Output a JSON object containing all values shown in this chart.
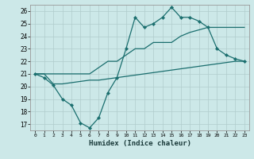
{
  "xlabel": "Humidex (Indice chaleur)",
  "xlim": [
    -0.5,
    23.5
  ],
  "ylim": [
    16.5,
    26.5
  ],
  "xticks": [
    0,
    1,
    2,
    3,
    4,
    5,
    6,
    7,
    8,
    9,
    10,
    11,
    12,
    13,
    14,
    15,
    16,
    17,
    18,
    19,
    20,
    21,
    22,
    23
  ],
  "yticks": [
    17,
    18,
    19,
    20,
    21,
    22,
    23,
    24,
    25,
    26
  ],
  "bg_color": "#cce8e8",
  "grid_color": "#b0cccc",
  "line_color": "#1a6e6e",
  "line1_y": [
    21.0,
    20.7,
    20.1,
    19.0,
    18.5,
    17.1,
    16.7,
    17.5,
    19.5,
    20.7,
    23.0,
    25.5,
    24.7,
    25.0,
    25.5,
    26.3,
    25.5,
    25.5,
    25.2,
    24.7,
    23.0,
    22.5,
    22.2,
    22.0
  ],
  "line2_y": [
    21.0,
    21.0,
    21.0,
    21.0,
    21.0,
    21.0,
    21.0,
    21.5,
    22.0,
    22.0,
    22.5,
    23.0,
    23.0,
    23.5,
    23.5,
    23.5,
    24.0,
    24.3,
    24.5,
    24.7,
    24.7,
    24.7,
    24.7,
    24.7
  ],
  "line3_y": [
    21.0,
    21.0,
    20.2,
    20.2,
    20.3,
    20.4,
    20.5,
    20.5,
    20.6,
    20.7,
    20.8,
    20.9,
    21.0,
    21.1,
    21.2,
    21.3,
    21.4,
    21.5,
    21.6,
    21.7,
    21.8,
    21.9,
    22.0,
    22.0
  ]
}
